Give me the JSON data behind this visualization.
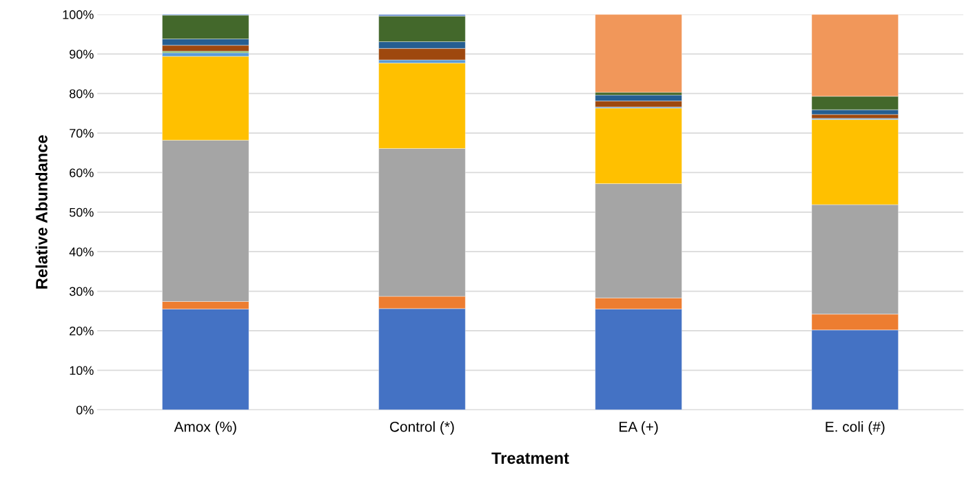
{
  "chart_data": {
    "type": "bar",
    "stacked": true,
    "xlabel": "Treatment",
    "ylabel": "Relative Abundance",
    "categories": [
      "Amox (%)",
      "Control (*)",
      "EA (+)",
      "E. coli (#)"
    ],
    "series": [
      {
        "color": "#4472c4",
        "values": [
          25.5,
          25.6,
          25.5,
          20.2
        ]
      },
      {
        "color": "#ed7d31",
        "values": [
          1.9,
          3.1,
          2.8,
          4.0
        ]
      },
      {
        "color": "#a5a5a5",
        "values": [
          40.8,
          37.4,
          28.9,
          27.7
        ]
      },
      {
        "color": "#ffc000",
        "values": [
          21.2,
          21.6,
          19.1,
          21.5
        ]
      },
      {
        "color": "#5b9bd5",
        "values": [
          0.9,
          0.8,
          0.3,
          0.3
        ]
      },
      {
        "color": "#70ad47",
        "values": [
          0.4,
          null,
          null,
          null
        ]
      },
      {
        "color": "#9e480e",
        "values": [
          1.5,
          2.9,
          1.5,
          1.0
        ]
      },
      {
        "color": "#255e91",
        "values": [
          1.6,
          1.7,
          1.5,
          1.2
        ]
      },
      {
        "color": "#43682b",
        "values": [
          6.0,
          6.5,
          0.7,
          3.4
        ]
      },
      {
        "color": "#698ed0",
        "values": [
          0.3,
          0.4,
          null,
          null
        ]
      },
      {
        "color": "#f1975a",
        "values": [
          null,
          null,
          19.7,
          20.7
        ]
      }
    ],
    "ylim": [
      0,
      100
    ],
    "yticks": [
      {
        "value": 0,
        "label": "0%"
      },
      {
        "value": 10,
        "label": "10%"
      },
      {
        "value": 20,
        "label": "20%"
      },
      {
        "value": 30,
        "label": "30%"
      },
      {
        "value": 40,
        "label": "40%"
      },
      {
        "value": 50,
        "label": "50%"
      },
      {
        "value": 60,
        "label": "60%"
      },
      {
        "value": 70,
        "label": "70%"
      },
      {
        "value": 80,
        "label": "80%"
      },
      {
        "value": 90,
        "label": "90%"
      },
      {
        "value": 100,
        "label": "100%"
      }
    ],
    "grid": "y",
    "legend": false
  }
}
